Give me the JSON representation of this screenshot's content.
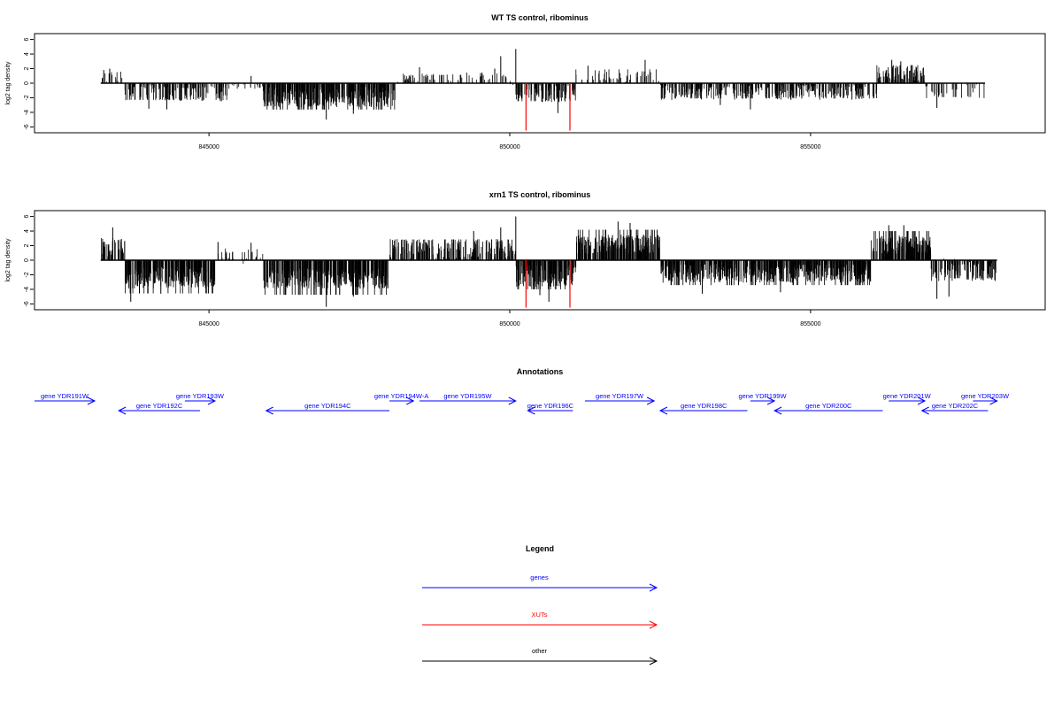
{
  "chart_data": [
    {
      "type": "bar",
      "title": "WT TS control, ribominus",
      "ylabel": "log2 tag density",
      "ylim": [
        -6.8,
        6.8
      ],
      "yticks": [
        6,
        4,
        2,
        0,
        -2,
        -4,
        -6
      ],
      "xlim": [
        842100,
        858900
      ],
      "xticks": [
        845000,
        850000,
        855000
      ],
      "xtick_labels": [
        "845000",
        "850000",
        "855000"
      ],
      "grid": false,
      "bar_color": "#000000",
      "highlight_color": "#ff0000",
      "highlights": [
        {
          "x": 850270,
          "y": -6.5
        },
        {
          "x": 851000,
          "y": -6.5
        }
      ],
      "segments": [
        {
          "start": 843200,
          "end": 843600,
          "mean": 0.8,
          "amp": 0.9,
          "spikes": [
            [
              843250,
              1.8
            ],
            [
              843350,
              2.0
            ]
          ]
        },
        {
          "start": 843600,
          "end": 845300,
          "mean": -1.2,
          "amp": 1.3,
          "spikes": [
            [
              844000,
              -3.5
            ],
            [
              844300,
              -3.6
            ]
          ]
        },
        {
          "start": 845300,
          "end": 845900,
          "mean": -0.4,
          "amp": 0.5,
          "spikes": [
            [
              845700,
              1.0
            ]
          ]
        },
        {
          "start": 845900,
          "end": 848100,
          "mean": -1.9,
          "amp": 1.4,
          "spikes": [
            [
              846950,
              -5.0
            ],
            [
              847400,
              -4.2
            ]
          ]
        },
        {
          "start": 848100,
          "end": 850100,
          "mean": 0.6,
          "amp": 0.9,
          "spikes": [
            [
              848500,
              2.2
            ],
            [
              849850,
              3.7
            ],
            [
              849750,
              2.0
            ]
          ]
        },
        {
          "start": 850100,
          "end": 851100,
          "mean": -1.3,
          "amp": 1.4,
          "spikes": [
            [
              850100,
              4.7
            ],
            [
              850800,
              -4.1
            ]
          ]
        },
        {
          "start": 851100,
          "end": 852500,
          "mean": 1.0,
          "amp": 0.9,
          "spikes": [
            [
              852250,
              3.2
            ],
            [
              851300,
              2.4
            ]
          ]
        },
        {
          "start": 852500,
          "end": 856100,
          "mean": -1.1,
          "amp": 1.2,
          "spikes": [
            [
              854000,
              -3.6
            ],
            [
              853500,
              -3.0
            ]
          ]
        },
        {
          "start": 856100,
          "end": 856900,
          "mean": 1.3,
          "amp": 1.1,
          "spikes": [
            [
              856350,
              3.2
            ],
            [
              856500,
              3.0
            ]
          ]
        },
        {
          "start": 856900,
          "end": 857900,
          "mean": -1.0,
          "amp": 1.1,
          "spikes": [
            [
              857100,
              -3.4
            ]
          ]
        }
      ]
    },
    {
      "type": "bar",
      "title": "xrn1 TS control, ribominus",
      "ylabel": "log2 tag density",
      "ylim": [
        -6.8,
        6.8
      ],
      "yticks": [
        6,
        4,
        2,
        0,
        -2,
        -4,
        -6
      ],
      "xlim": [
        842100,
        858900
      ],
      "xticks": [
        845000,
        850000,
        855000
      ],
      "xtick_labels": [
        "845000",
        "850000",
        "855000"
      ],
      "grid": false,
      "bar_color": "#000000",
      "highlight_color": "#ff0000",
      "highlights": [
        {
          "x": 850270,
          "y": -6.5
        },
        {
          "x": 851000,
          "y": -6.5
        }
      ],
      "segments": [
        {
          "start": 843200,
          "end": 843600,
          "mean": 1.6,
          "amp": 1.4,
          "spikes": [
            [
              843400,
              4.5
            ]
          ]
        },
        {
          "start": 843600,
          "end": 845100,
          "mean": -2.4,
          "amp": 1.5,
          "spikes": [
            [
              843700,
              -5.7
            ],
            [
              844200,
              -4.6
            ]
          ]
        },
        {
          "start": 845100,
          "end": 845900,
          "mean": 0.6,
          "amp": 1.2,
          "spikes": [
            [
              845150,
              2.5
            ],
            [
              845700,
              2.4
            ]
          ]
        },
        {
          "start": 845900,
          "end": 848000,
          "mean": -2.5,
          "amp": 1.4,
          "spikes": [
            [
              846950,
              -6.4
            ],
            [
              847400,
              -5.0
            ]
          ]
        },
        {
          "start": 848000,
          "end": 850100,
          "mean": 1.5,
          "amp": 1.4,
          "spikes": [
            [
              850100,
              6.0
            ],
            [
              849850,
              4.5
            ],
            [
              849400,
              4.0
            ]
          ]
        },
        {
          "start": 850100,
          "end": 851100,
          "mean": -2.1,
          "amp": 1.6,
          "spikes": [
            [
              850650,
              -5.7
            ],
            [
              850500,
              -4.8
            ]
          ]
        },
        {
          "start": 851100,
          "end": 852500,
          "mean": 2.2,
          "amp": 1.3,
          "spikes": [
            [
              851800,
              5.3
            ],
            [
              852000,
              5.1
            ]
          ]
        },
        {
          "start": 852500,
          "end": 856000,
          "mean": -1.8,
          "amp": 1.3,
          "spikes": [
            [
              853200,
              -4.6
            ],
            [
              854500,
              -4.4
            ]
          ]
        },
        {
          "start": 856000,
          "end": 857000,
          "mean": 2.1,
          "amp": 1.3,
          "spikes": [
            [
              856300,
              4.8
            ],
            [
              856550,
              4.8
            ]
          ]
        },
        {
          "start": 857000,
          "end": 858100,
          "mean": -1.3,
          "amp": 1.6,
          "spikes": [
            [
              857100,
              -5.3
            ],
            [
              857300,
              -5.0
            ]
          ]
        }
      ]
    }
  ],
  "annotations": {
    "title": "Annotations",
    "gene_color": "#0000ff",
    "genes": [
      {
        "name": "gene YDR191W",
        "start": 842100,
        "end": 843100,
        "strand": "+",
        "row": 0
      },
      {
        "name": "gene YDR192C",
        "start": 843500,
        "end": 844850,
        "strand": "-",
        "row": 1
      },
      {
        "name": "gene YDR193W",
        "start": 844600,
        "end": 845100,
        "strand": "+",
        "row": 0
      },
      {
        "name": "gene YDR194C",
        "start": 845950,
        "end": 848000,
        "strand": "-",
        "row": 1
      },
      {
        "name": "gene YDR194W-A",
        "start": 848000,
        "end": 848400,
        "strand": "+",
        "row": 0
      },
      {
        "name": "gene YDR195W",
        "start": 848500,
        "end": 850100,
        "strand": "+",
        "row": 0
      },
      {
        "name": "gene YDR196C",
        "start": 850300,
        "end": 851050,
        "strand": "-",
        "row": 1
      },
      {
        "name": "gene YDR197W",
        "start": 851250,
        "end": 852400,
        "strand": "+",
        "row": 0
      },
      {
        "name": "gene YDR198C",
        "start": 852500,
        "end": 853950,
        "strand": "-",
        "row": 1
      },
      {
        "name": "gene YDR199W",
        "start": 854000,
        "end": 854400,
        "strand": "+",
        "row": 0
      },
      {
        "name": "gene YDR200C",
        "start": 854400,
        "end": 856200,
        "strand": "-",
        "row": 1
      },
      {
        "name": "gene YDR201W",
        "start": 856300,
        "end": 856900,
        "strand": "+",
        "row": 0
      },
      {
        "name": "gene YDR202C",
        "start": 856850,
        "end": 857950,
        "strand": "-",
        "row": 1
      },
      {
        "name": "gene YDR203W",
        "start": 857700,
        "end": 858100,
        "strand": "+",
        "row": 0
      }
    ]
  },
  "legend": {
    "title": "Legend",
    "items": [
      {
        "label": "genes",
        "color": "#0000ff"
      },
      {
        "label": "XUTs",
        "color": "#ff0000"
      },
      {
        "label": "other",
        "color": "#000000"
      }
    ]
  }
}
